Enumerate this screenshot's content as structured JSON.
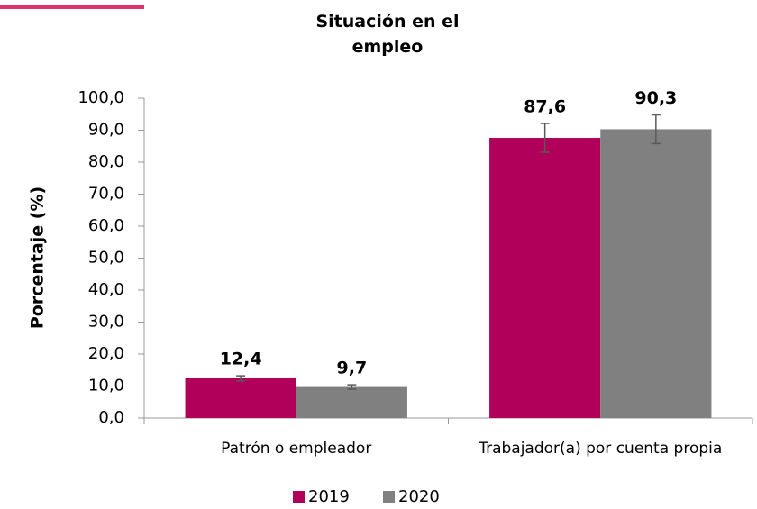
{
  "chart_data": {
    "type": "bar",
    "title": "Situación en el empleo",
    "ylabel": "Porcentaje (%)",
    "categories": [
      "Patrón o empleador",
      "Trabajador(a) por cuenta propia"
    ],
    "series": [
      {
        "name": "2019",
        "color": "#b0005a",
        "values": [
          12.4,
          87.6
        ],
        "value_labels": [
          "12,4",
          "87,6"
        ],
        "errors": [
          0.8,
          4.5
        ]
      },
      {
        "name": "2020",
        "color": "#808080",
        "values": [
          9.7,
          90.3
        ],
        "value_labels": [
          "9,7",
          "90,3"
        ],
        "errors": [
          0.7,
          4.5
        ]
      }
    ],
    "ylim": [
      0,
      100
    ],
    "yticks": [
      {
        "value": 0,
        "label": "0,0"
      },
      {
        "value": 10,
        "label": "10,0"
      },
      {
        "value": 20,
        "label": "20,0"
      },
      {
        "value": 30,
        "label": "30,0"
      },
      {
        "value": 40,
        "label": "40,0"
      },
      {
        "value": 50,
        "label": "50,0"
      },
      {
        "value": 60,
        "label": "60,0"
      },
      {
        "value": 70,
        "label": "70,0"
      },
      {
        "value": 80,
        "label": "80,0"
      },
      {
        "value": 90,
        "label": "90,0"
      },
      {
        "value": 100,
        "label": "100,0"
      }
    ],
    "legend": "bottom"
  }
}
